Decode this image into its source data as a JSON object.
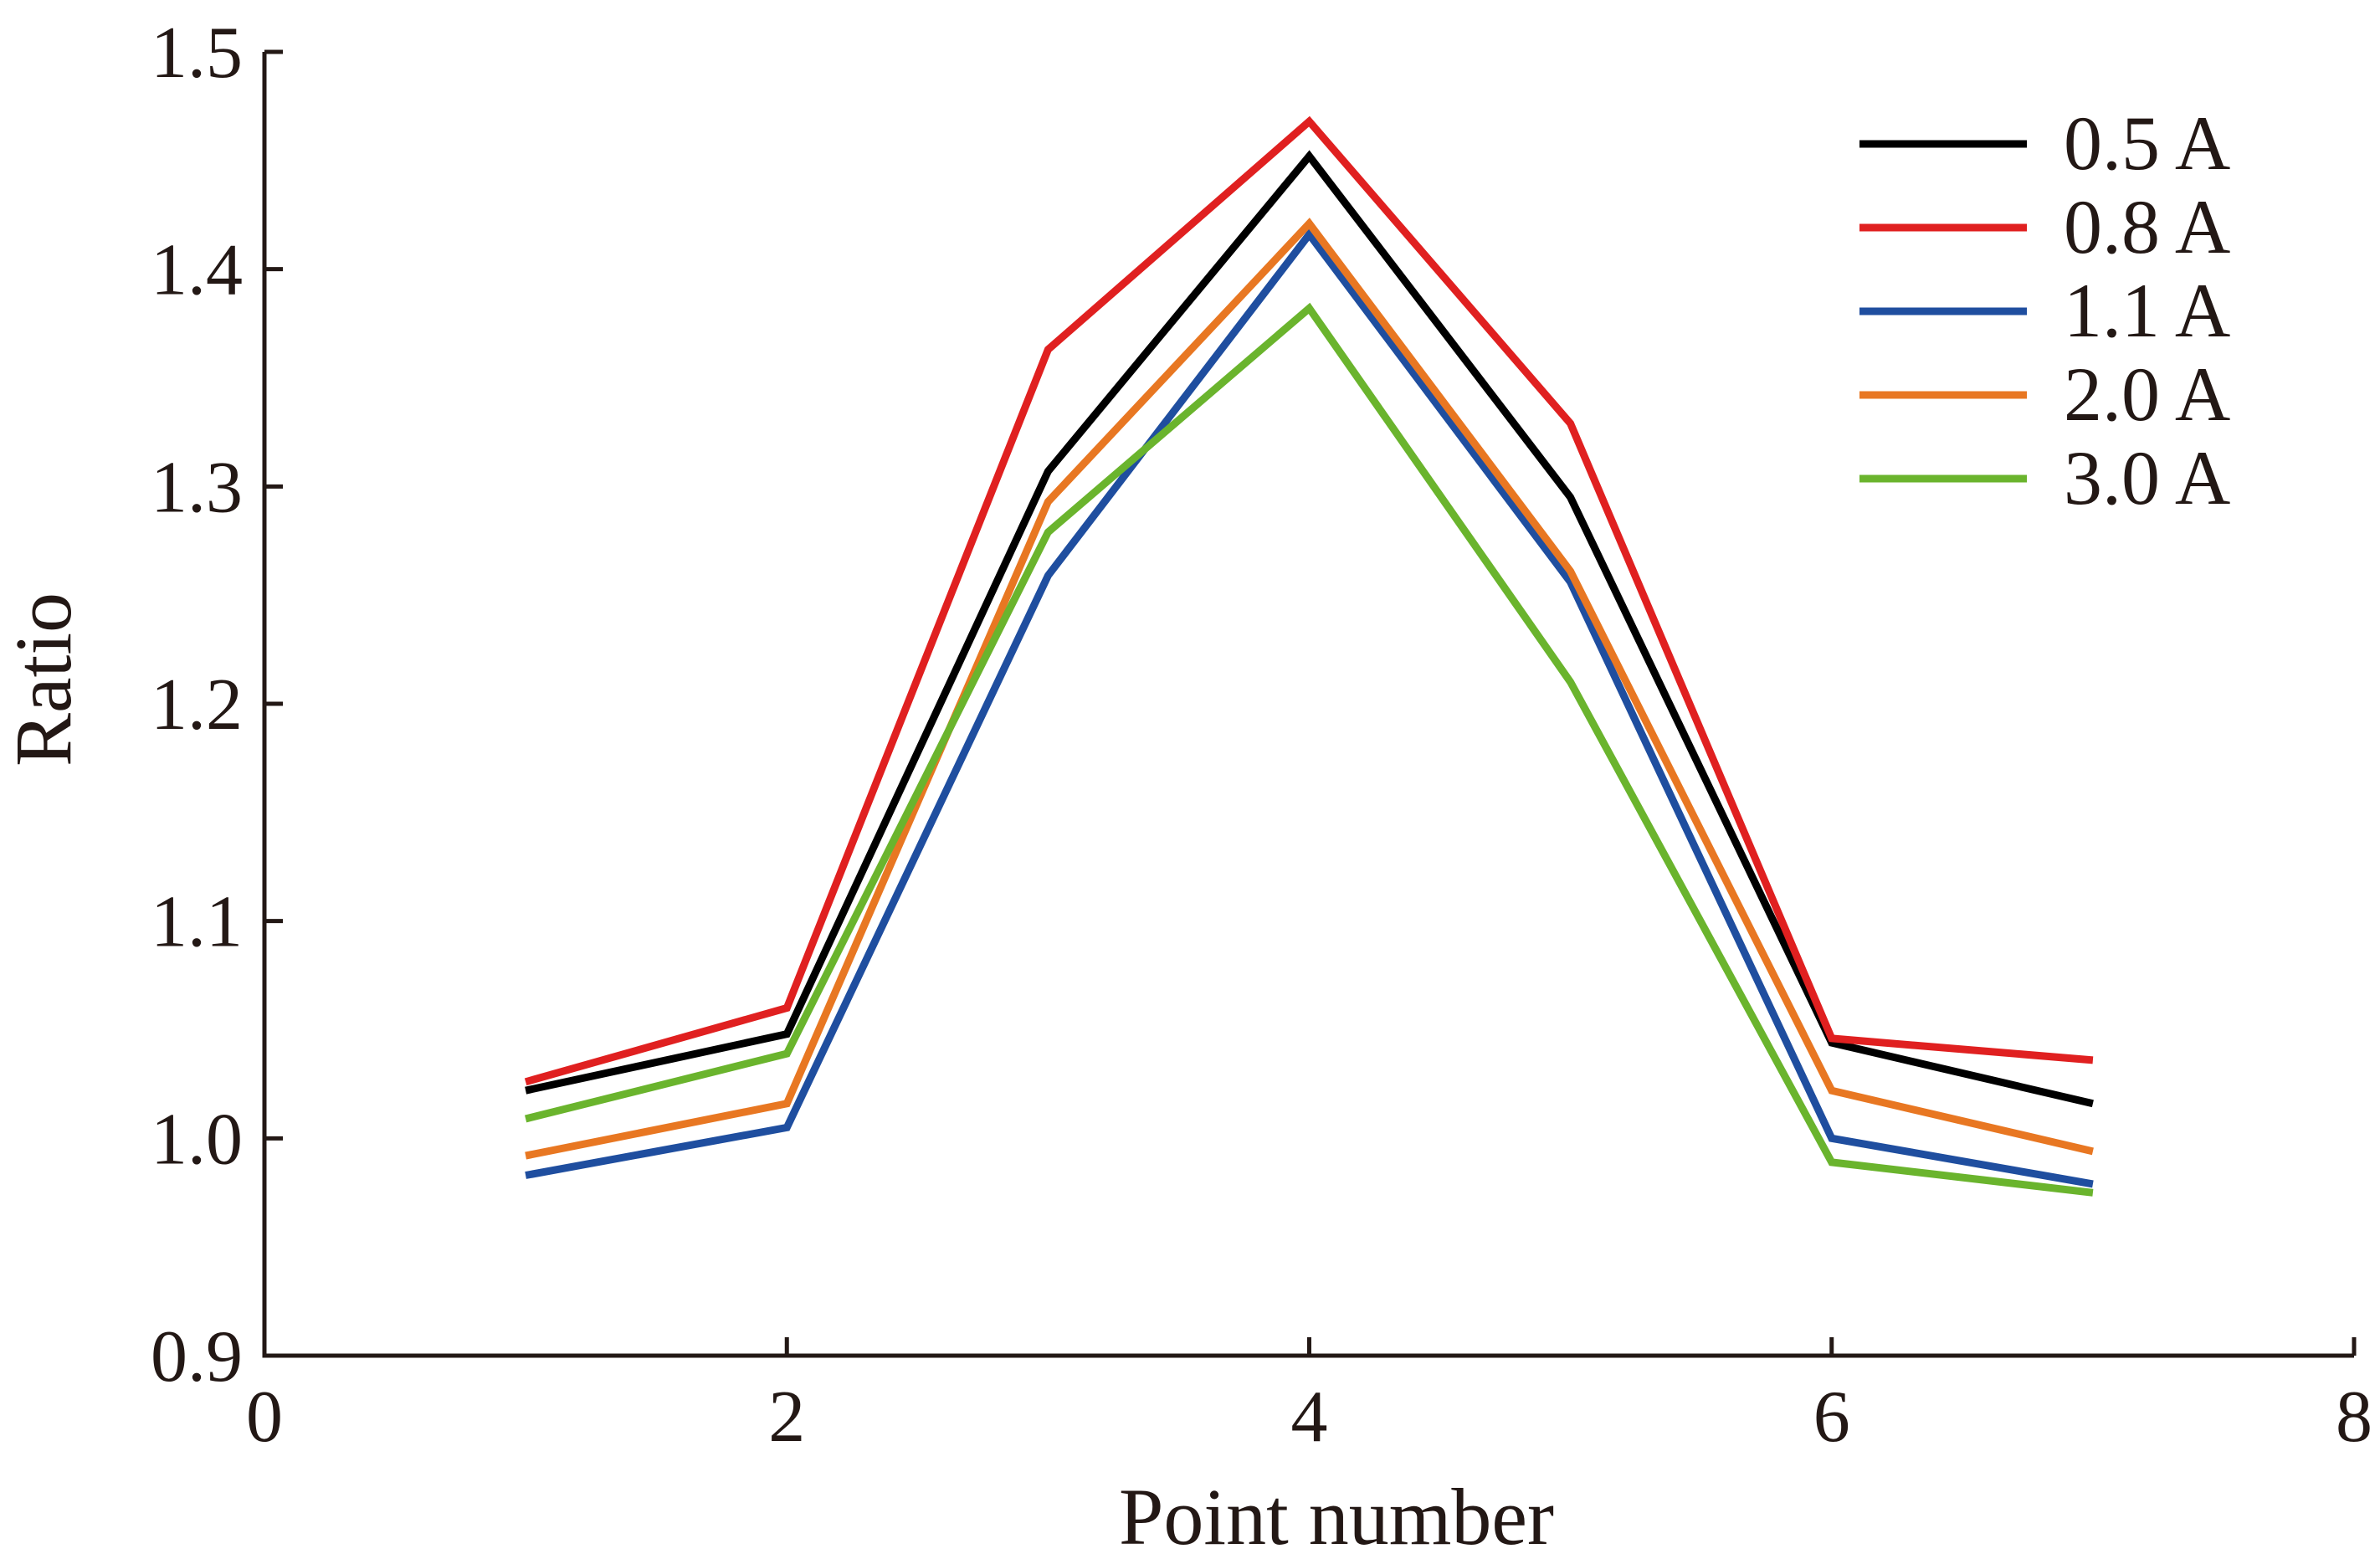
{
  "chart_data": {
    "type": "line",
    "xlabel": "Point number",
    "ylabel": "Ratio",
    "xlim": [
      0,
      8
    ],
    "ylim": [
      0.9,
      1.5
    ],
    "xticks": [
      "0",
      "2",
      "4",
      "6",
      "8"
    ],
    "yticks": [
      "0.9",
      "1.0",
      "1.1",
      "1.2",
      "1.3",
      "1.4",
      "1.5"
    ],
    "grid": false,
    "legend_position": "top-right",
    "x": [
      1,
      2,
      3,
      4,
      5,
      6,
      7
    ],
    "series": [
      {
        "name": "0.5 A",
        "color": "#000000",
        "values": [
          1.022,
          1.048,
          1.307,
          1.452,
          1.295,
          1.044,
          1.016
        ]
      },
      {
        "name": "0.8 A",
        "color": "#e02020",
        "values": [
          1.026,
          1.06,
          1.363,
          1.468,
          1.329,
          1.046,
          1.036
        ]
      },
      {
        "name": "1.1 A",
        "color": "#1f4e9f",
        "values": [
          0.983,
          1.005,
          1.259,
          1.416,
          1.256,
          1.0,
          0.979
        ]
      },
      {
        "name": "2.0 A",
        "color": "#e87722",
        "values": [
          0.992,
          1.016,
          1.293,
          1.421,
          1.261,
          1.022,
          0.994
        ]
      },
      {
        "name": "3.0 A",
        "color": "#6ab42d",
        "values": [
          1.009,
          1.039,
          1.279,
          1.382,
          1.21,
          0.989,
          0.975
        ]
      }
    ]
  }
}
